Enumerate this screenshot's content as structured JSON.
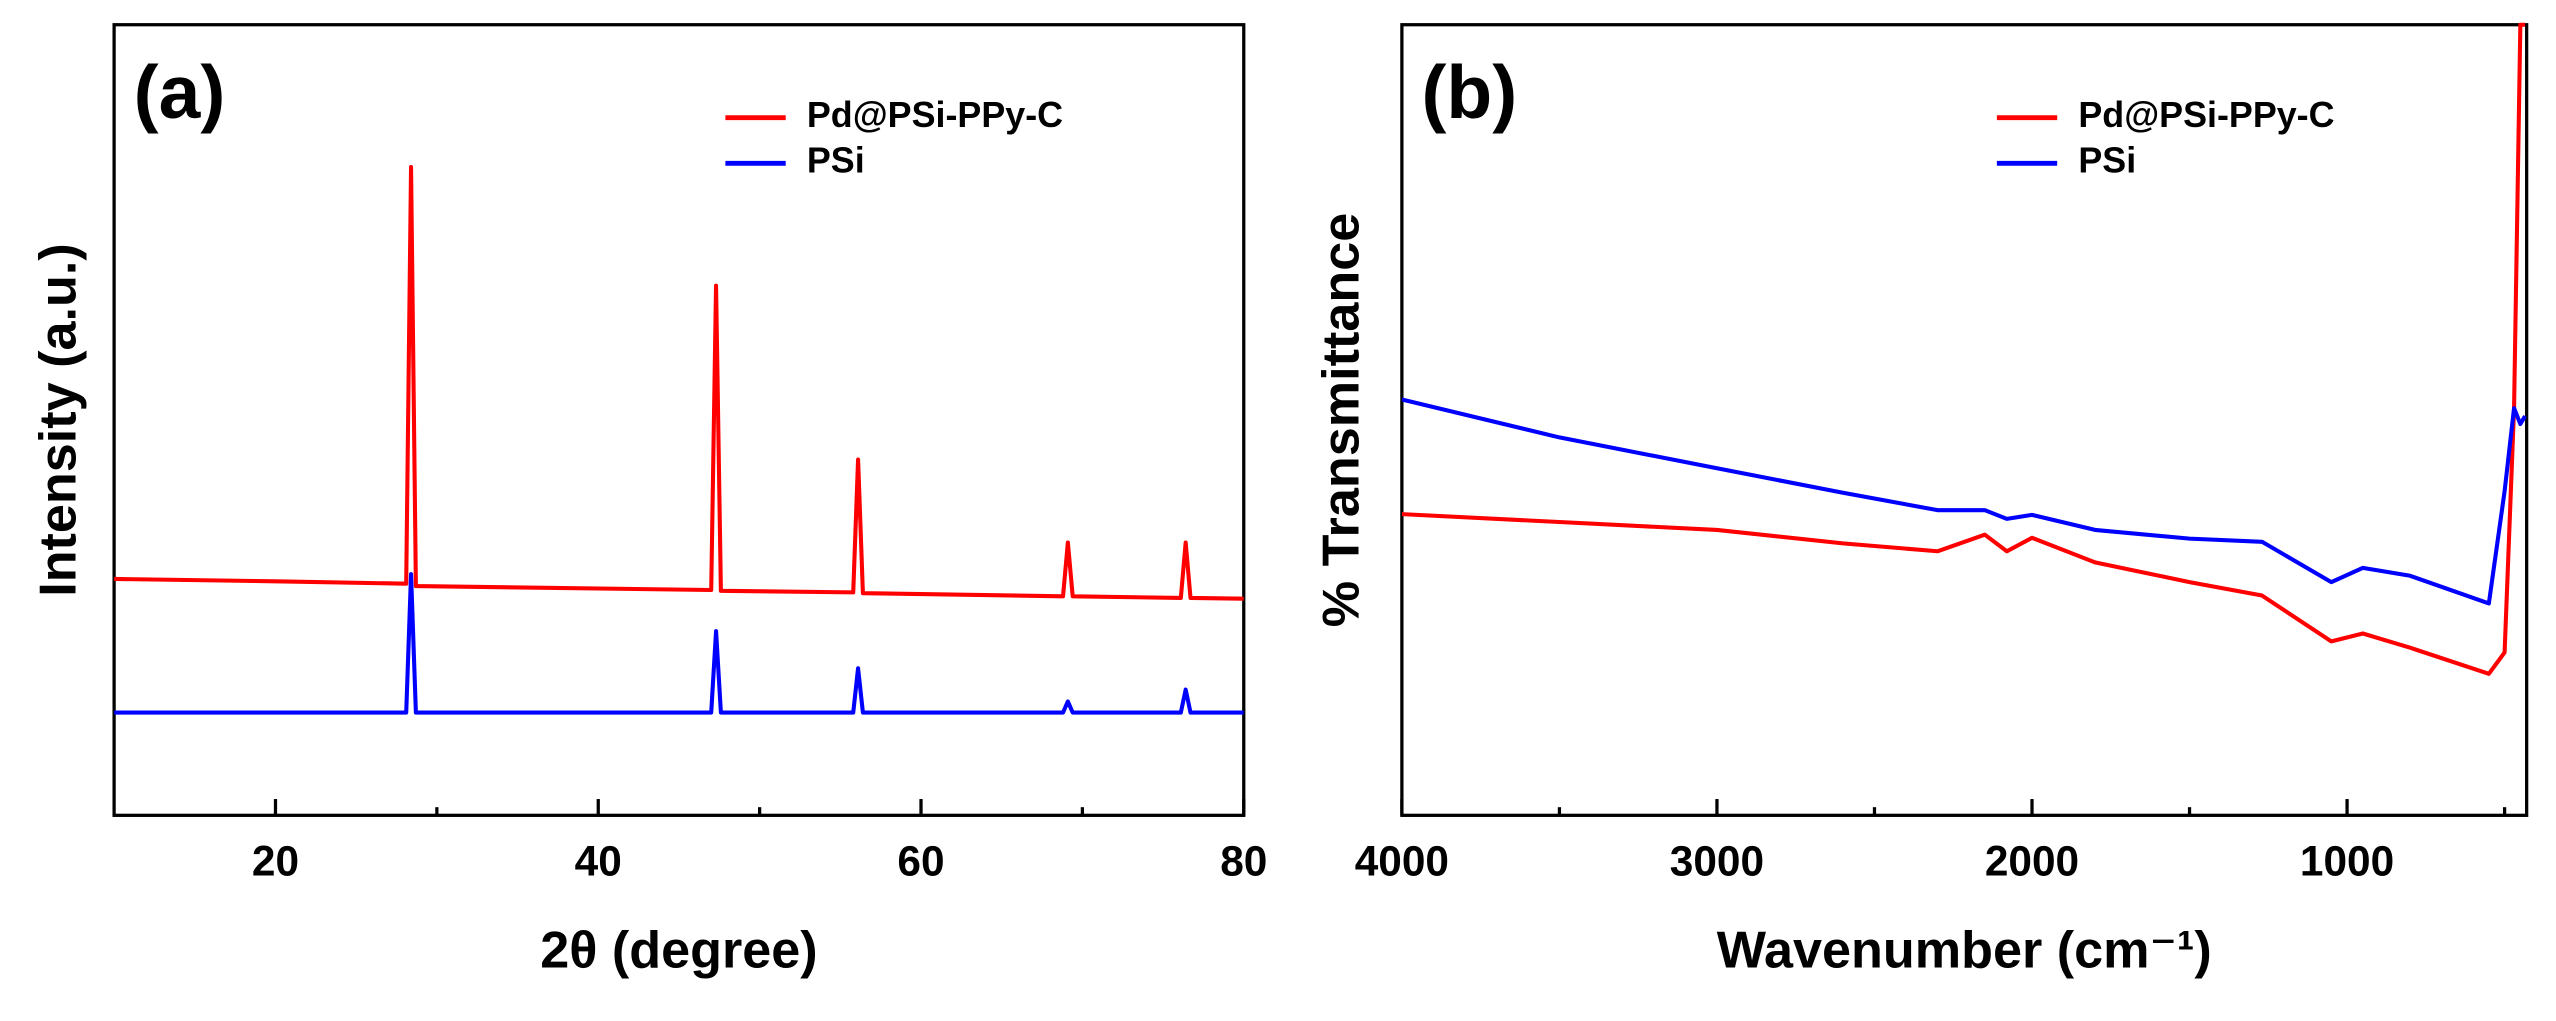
{
  "chart_data": [
    {
      "type": "line",
      "annotation": "(a)",
      "xlabel": "2θ (degree)",
      "ylabel": "Intensity (a.u.)",
      "xlim": [
        10,
        80
      ],
      "xticks": [
        20,
        40,
        60,
        80
      ],
      "xticks_minor": [
        30,
        50,
        70
      ],
      "ylim": [
        0,
        100
      ],
      "legend": "upper right",
      "x": [
        10,
        20,
        28.1,
        28.4,
        28.7,
        47.0,
        47.3,
        47.6,
        55.8,
        56.1,
        56.4,
        68.8,
        69.1,
        69.4,
        76.1,
        76.4,
        76.7,
        80
      ],
      "series": [
        {
          "name": "Pd@PSi-PPy-C",
          "color": "#ff0000",
          "values": [
            29.9,
            29.6,
            29.3,
            82,
            29.0,
            28.5,
            67,
            28.4,
            28.2,
            45,
            28.1,
            27.7,
            34.5,
            27.7,
            27.5,
            34.5,
            27.5,
            27.4
          ]
        },
        {
          "name": "PSi",
          "color": "#0000ff",
          "values": [
            13,
            13,
            13,
            30.5,
            13,
            13,
            23.3,
            13,
            13,
            18.6,
            13,
            13,
            14.4,
            13,
            13,
            15.9,
            13,
            13
          ]
        }
      ]
    },
    {
      "type": "line",
      "annotation": "(b)",
      "xlabel": "Wavenumber (cm⁻¹)",
      "ylabel": "% Transmittance",
      "xlim": [
        4000,
        430
      ],
      "xticks": [
        4000,
        3000,
        2000,
        1000
      ],
      "xticks_minor": [
        3500,
        2500,
        1500,
        500
      ],
      "ylim": [
        0,
        100
      ],
      "legend": "upper right",
      "x": [
        4000,
        3500,
        3000,
        2600,
        2300,
        2150,
        2080,
        2000,
        1800,
        1500,
        1270,
        1050,
        950,
        800,
        550,
        500,
        470,
        450,
        435
      ],
      "series": [
        {
          "name": "Pd@PSi-PPy-C",
          "color": "#ff0000",
          "values": [
            38.1,
            37.1,
            36.1,
            34.4,
            33.4,
            35.5,
            33.4,
            35.1,
            32,
            29.5,
            27.8,
            22,
            23,
            21.2,
            17.9,
            20.6,
            51.5,
            100,
            100
          ]
        },
        {
          "name": "PSi",
          "color": "#0000ff",
          "values": [
            52.6,
            47.8,
            43.9,
            40.8,
            38.6,
            38.6,
            37.5,
            38,
            36.1,
            35,
            34.6,
            29.5,
            31.3,
            30.3,
            26.8,
            41,
            51.5,
            49.5,
            50.5
          ]
        }
      ]
    }
  ]
}
